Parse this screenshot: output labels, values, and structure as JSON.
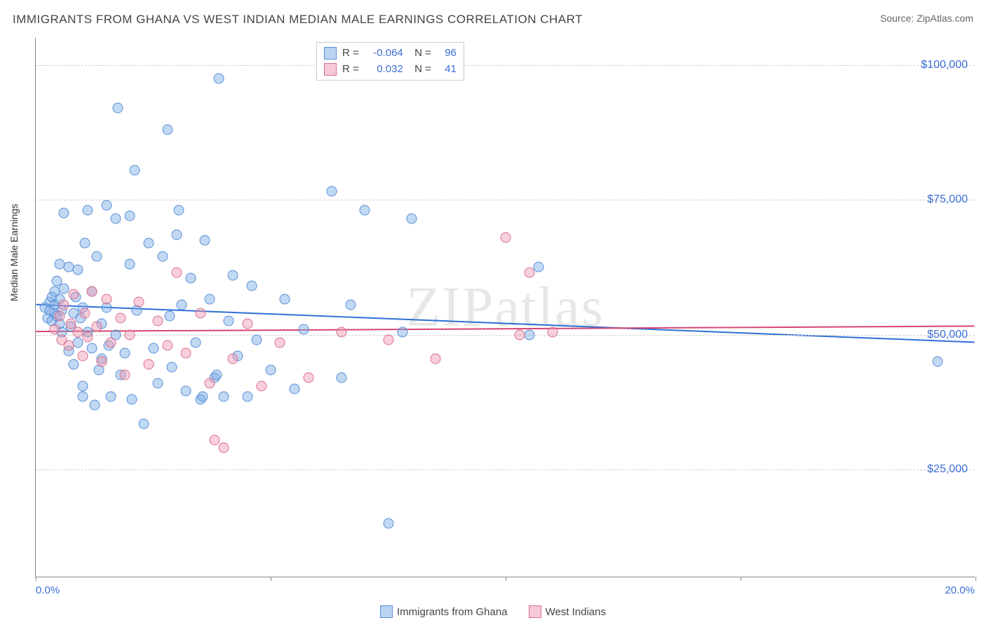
{
  "title": "IMMIGRANTS FROM GHANA VS WEST INDIAN MEDIAN MALE EARNINGS CORRELATION CHART",
  "source": "Source: ZipAtlas.com",
  "ylabel": "Median Male Earnings",
  "watermark": "ZIPatlas",
  "chart": {
    "type": "scatter",
    "xlim": [
      0,
      20
    ],
    "ylim": [
      5000,
      105000
    ],
    "yticks": [
      25000,
      50000,
      75000,
      100000
    ],
    "ytick_labels": [
      "$25,000",
      "$50,000",
      "$75,000",
      "$100,000"
    ],
    "xtick_positions": [
      0,
      5,
      10,
      15,
      20
    ],
    "xlabel_min": "0.0%",
    "xlabel_max": "20.0%",
    "background_color": "#ffffff",
    "grid_color": "#d0d0d0",
    "marker_radius": 7.5,
    "series": [
      {
        "name": "Immigrants from Ghana",
        "fill": "rgba(120,170,230,0.45)",
        "stroke": "#5a8fd6",
        "swatch_fill": "#b9d3f0",
        "swatch_border": "#5a8fd6",
        "corr_r": "-0.064",
        "corr_n": "96",
        "trend": {
          "y0": 55500,
          "y1": 48500,
          "color": "#2e6fd6",
          "width": 2
        },
        "points": [
          [
            0.2,
            55000
          ],
          [
            0.25,
            53000
          ],
          [
            0.3,
            54500
          ],
          [
            0.3,
            56000
          ],
          [
            0.35,
            52500
          ],
          [
            0.35,
            57000
          ],
          [
            0.4,
            54000
          ],
          [
            0.4,
            55500
          ],
          [
            0.4,
            58000
          ],
          [
            0.45,
            53500
          ],
          [
            0.45,
            60000
          ],
          [
            0.5,
            52000
          ],
          [
            0.5,
            56500
          ],
          [
            0.5,
            63000
          ],
          [
            0.55,
            54500
          ],
          [
            0.55,
            50500
          ],
          [
            0.6,
            58500
          ],
          [
            0.6,
            72500
          ],
          [
            0.7,
            47000
          ],
          [
            0.7,
            62500
          ],
          [
            0.75,
            51500
          ],
          [
            0.8,
            54000
          ],
          [
            0.8,
            44500
          ],
          [
            0.85,
            57000
          ],
          [
            0.9,
            48500
          ],
          [
            0.9,
            62000
          ],
          [
            0.95,
            53000
          ],
          [
            1.0,
            40500
          ],
          [
            1.0,
            55000
          ],
          [
            1.05,
            67000
          ],
          [
            1.1,
            50500
          ],
          [
            1.1,
            73000
          ],
          [
            1.2,
            47500
          ],
          [
            1.2,
            58000
          ],
          [
            1.25,
            37000
          ],
          [
            1.3,
            64500
          ],
          [
            1.35,
            43500
          ],
          [
            1.4,
            52000
          ],
          [
            1.4,
            45500
          ],
          [
            1.5,
            74000
          ],
          [
            1.5,
            55000
          ],
          [
            1.55,
            48000
          ],
          [
            1.6,
            38500
          ],
          [
            1.7,
            71500
          ],
          [
            1.7,
            50000
          ],
          [
            1.75,
            92000
          ],
          [
            1.8,
            42500
          ],
          [
            1.9,
            46500
          ],
          [
            2.0,
            63000
          ],
          [
            2.0,
            72000
          ],
          [
            2.05,
            38000
          ],
          [
            2.1,
            80500
          ],
          [
            2.15,
            54500
          ],
          [
            2.3,
            33500
          ],
          [
            2.4,
            67000
          ],
          [
            2.5,
            47500
          ],
          [
            2.6,
            41000
          ],
          [
            2.7,
            64500
          ],
          [
            2.8,
            88000
          ],
          [
            2.85,
            53500
          ],
          [
            2.9,
            44000
          ],
          [
            3.0,
            68500
          ],
          [
            3.05,
            73000
          ],
          [
            3.1,
            55500
          ],
          [
            3.2,
            39500
          ],
          [
            3.3,
            60500
          ],
          [
            3.4,
            48500
          ],
          [
            3.5,
            38000
          ],
          [
            3.55,
            38500
          ],
          [
            3.6,
            67500
          ],
          [
            3.7,
            56500
          ],
          [
            3.8,
            42000
          ],
          [
            3.85,
            42500
          ],
          [
            3.9,
            97500
          ],
          [
            4.0,
            38500
          ],
          [
            4.1,
            52500
          ],
          [
            4.2,
            61000
          ],
          [
            4.3,
            46000
          ],
          [
            4.5,
            38500
          ],
          [
            4.6,
            59000
          ],
          [
            4.7,
            49000
          ],
          [
            5.0,
            43500
          ],
          [
            5.3,
            56500
          ],
          [
            5.5,
            40000
          ],
          [
            5.7,
            51000
          ],
          [
            6.3,
            76500
          ],
          [
            6.5,
            42000
          ],
          [
            6.7,
            55500
          ],
          [
            7.0,
            73000
          ],
          [
            7.5,
            15000
          ],
          [
            7.8,
            50500
          ],
          [
            8.0,
            71500
          ],
          [
            10.5,
            50000
          ],
          [
            10.7,
            62500
          ],
          [
            19.2,
            45000
          ],
          [
            1.0,
            38500
          ]
        ]
      },
      {
        "name": "West Indians",
        "fill": "rgba(240,150,175,0.45)",
        "stroke": "#d87090",
        "swatch_fill": "#f5c9d6",
        "swatch_border": "#d87090",
        "corr_r": "0.032",
        "corr_n": "41",
        "trend": {
          "y0": 50500,
          "y1": 51500,
          "color": "#d6456f",
          "width": 2
        },
        "points": [
          [
            0.4,
            51000
          ],
          [
            0.5,
            53500
          ],
          [
            0.55,
            49000
          ],
          [
            0.6,
            55500
          ],
          [
            0.7,
            48000
          ],
          [
            0.75,
            52000
          ],
          [
            0.8,
            57500
          ],
          [
            0.9,
            50500
          ],
          [
            1.0,
            46000
          ],
          [
            1.05,
            54000
          ],
          [
            1.1,
            49500
          ],
          [
            1.2,
            58000
          ],
          [
            1.3,
            51500
          ],
          [
            1.4,
            45000
          ],
          [
            1.5,
            56500
          ],
          [
            1.6,
            48500
          ],
          [
            1.8,
            53000
          ],
          [
            1.9,
            42500
          ],
          [
            2.0,
            50000
          ],
          [
            2.2,
            56000
          ],
          [
            2.4,
            44500
          ],
          [
            2.6,
            52500
          ],
          [
            2.8,
            48000
          ],
          [
            3.0,
            61500
          ],
          [
            3.2,
            46500
          ],
          [
            3.5,
            54000
          ],
          [
            3.7,
            41000
          ],
          [
            3.8,
            30500
          ],
          [
            4.0,
            29000
          ],
          [
            4.2,
            45500
          ],
          [
            4.5,
            52000
          ],
          [
            4.8,
            40500
          ],
          [
            5.2,
            48500
          ],
          [
            5.8,
            42000
          ],
          [
            6.5,
            50500
          ],
          [
            7.5,
            49000
          ],
          [
            8.5,
            45500
          ],
          [
            10.0,
            68000
          ],
          [
            10.3,
            50000
          ],
          [
            10.5,
            61500
          ],
          [
            11.0,
            50500
          ]
        ]
      }
    ]
  }
}
